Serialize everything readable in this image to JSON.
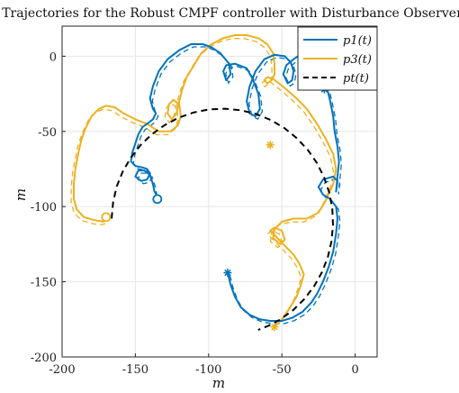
{
  "chart_data": {
    "type": "line",
    "title": "Trajectories for the Robust CMPF controller with Disturbance Observer",
    "xlabel": "m",
    "ylabel": "m",
    "xlim": [
      -200,
      15
    ],
    "ylim": [
      -200,
      20
    ],
    "xticks": [
      "-200",
      "-150",
      "-100",
      "-50",
      "0"
    ],
    "yticks": [
      "0",
      "-50",
      "-100",
      "-150",
      "-200"
    ],
    "grid": true,
    "legend_position": "top-right",
    "colors": {
      "p1": "#0072BD",
      "p3": "#EDB120",
      "pt": "#000000"
    },
    "series": [
      {
        "name": "p_1(t)",
        "color": "#0072BD",
        "style": "solid",
        "points": [
          [
            -87,
            -144
          ],
          [
            -85,
            -152
          ],
          [
            -82,
            -160
          ],
          [
            -78,
            -167
          ],
          [
            -72,
            -172
          ],
          [
            -65,
            -175
          ],
          [
            -58,
            -176
          ],
          [
            -50,
            -176
          ],
          [
            -43,
            -174
          ],
          [
            -36,
            -170
          ],
          [
            -30,
            -164
          ],
          [
            -26,
            -158
          ],
          [
            -22,
            -150
          ],
          [
            -18,
            -140
          ],
          [
            -15,
            -130
          ],
          [
            -13,
            -118
          ],
          [
            -12,
            -108
          ],
          [
            -13,
            -100
          ],
          [
            -17,
            -95
          ],
          [
            -22,
            -92
          ],
          [
            -25,
            -87
          ],
          [
            -22,
            -82
          ],
          [
            -15,
            -80
          ],
          [
            -12,
            -83
          ],
          [
            -13,
            -90
          ],
          [
            -12,
            -80
          ],
          [
            -11,
            -70
          ],
          [
            -12,
            -60
          ],
          [
            -14,
            -50
          ],
          [
            -15,
            -40
          ],
          [
            -17,
            -30
          ],
          [
            -19,
            -22
          ],
          [
            -21,
            -12
          ],
          [
            -22,
            -8
          ],
          [
            -26,
            -5
          ],
          [
            -31,
            -5
          ],
          [
            -36,
            -8
          ],
          [
            -38,
            -12
          ],
          [
            -36,
            -15
          ],
          [
            -32,
            -15
          ],
          [
            -30,
            -11
          ],
          [
            -28,
            -5
          ],
          [
            -30,
            2
          ],
          [
            -36,
            2
          ],
          [
            -42,
            -2
          ],
          [
            -47,
            -6
          ],
          [
            -49,
            -12
          ],
          [
            -46,
            -18
          ],
          [
            -43,
            -16
          ],
          [
            -42,
            -10
          ],
          [
            -44,
            -4
          ],
          [
            -48,
            0
          ],
          [
            -55,
            1
          ],
          [
            -62,
            -2
          ],
          [
            -68,
            -10
          ],
          [
            -72,
            -20
          ],
          [
            -74,
            -30
          ],
          [
            -72,
            -38
          ],
          [
            -68,
            -40
          ],
          [
            -65,
            -35
          ],
          [
            -66,
            -25
          ],
          [
            -70,
            -15
          ],
          [
            -74,
            -8
          ],
          [
            -82,
            -5
          ],
          [
            -88,
            -6
          ],
          [
            -90,
            -10
          ],
          [
            -88,
            -16
          ],
          [
            -85,
            -12
          ],
          [
            -86,
            -5
          ],
          [
            -92,
            2
          ],
          [
            -98,
            6
          ],
          [
            -104,
            8
          ],
          [
            -112,
            8
          ],
          [
            -120,
            4
          ],
          [
            -128,
            -2
          ],
          [
            -134,
            -10
          ],
          [
            -138,
            -20
          ],
          [
            -140,
            -28
          ],
          [
            -138,
            -35
          ],
          [
            -136,
            -38
          ],
          [
            -138,
            -42
          ],
          [
            -142,
            -45
          ],
          [
            -145,
            -47
          ],
          [
            -148,
            -52
          ],
          [
            -150,
            -58
          ],
          [
            -152,
            -64
          ],
          [
            -153,
            -70
          ],
          [
            -150,
            -73
          ],
          [
            -145,
            -74
          ],
          [
            -142,
            -75
          ],
          [
            -140,
            -78
          ],
          [
            -142,
            -82
          ],
          [
            -146,
            -83
          ],
          [
            -150,
            -80
          ],
          [
            -148,
            -76
          ],
          [
            -144,
            -76
          ],
          [
            -140,
            -79
          ],
          [
            -138,
            -85
          ],
          [
            -137,
            -90
          ],
          [
            -135,
            -93
          ],
          [
            -135,
            -95
          ]
        ]
      },
      {
        "name": "p_3(t)",
        "color": "#EDB120",
        "style": "solid",
        "points": [
          [
            -55,
            -180
          ],
          [
            -50,
            -175
          ],
          [
            -45,
            -168
          ],
          [
            -40,
            -160
          ],
          [
            -37,
            -152
          ],
          [
            -35,
            -145
          ],
          [
            -38,
            -138
          ],
          [
            -42,
            -132
          ],
          [
            -48,
            -126
          ],
          [
            -54,
            -120
          ],
          [
            -58,
            -116
          ],
          [
            -55,
            -114
          ],
          [
            -50,
            -116
          ],
          [
            -48,
            -122
          ],
          [
            -51,
            -125
          ],
          [
            -56,
            -121
          ],
          [
            -55,
            -115
          ],
          [
            -50,
            -110
          ],
          [
            -42,
            -108
          ],
          [
            -33,
            -108
          ],
          [
            -25,
            -104
          ],
          [
            -20,
            -96
          ],
          [
            -15,
            -85
          ],
          [
            -13,
            -75
          ],
          [
            -15,
            -65
          ],
          [
            -20,
            -55
          ],
          [
            -26,
            -45
          ],
          [
            -33,
            -35
          ],
          [
            -40,
            -28
          ],
          [
            -47,
            -22
          ],
          [
            -52,
            -18
          ],
          [
            -56,
            -15
          ],
          [
            -60,
            -14
          ],
          [
            -62,
            -16
          ],
          [
            -60,
            -18
          ],
          [
            -57,
            -16
          ],
          [
            -55,
            -12
          ],
          [
            -55,
            -5
          ],
          [
            -56,
            2
          ],
          [
            -60,
            8
          ],
          [
            -66,
            12
          ],
          [
            -74,
            14
          ],
          [
            -82,
            14
          ],
          [
            -90,
            12
          ],
          [
            -98,
            8
          ],
          [
            -105,
            2
          ],
          [
            -110,
            -6
          ],
          [
            -115,
            -14
          ],
          [
            -118,
            -22
          ],
          [
            -120,
            -30
          ],
          [
            -122,
            -38
          ],
          [
            -125,
            -42
          ],
          [
            -128,
            -38
          ],
          [
            -127,
            -32
          ],
          [
            -124,
            -29
          ],
          [
            -120,
            -32
          ],
          [
            -119,
            -40
          ],
          [
            -121,
            -46
          ],
          [
            -126,
            -50
          ],
          [
            -134,
            -50
          ],
          [
            -142,
            -45
          ],
          [
            -150,
            -42
          ],
          [
            -158,
            -38
          ],
          [
            -164,
            -34
          ],
          [
            -170,
            -33
          ],
          [
            -175,
            -35
          ],
          [
            -180,
            -40
          ],
          [
            -184,
            -48
          ],
          [
            -187,
            -56
          ],
          [
            -189,
            -65
          ],
          [
            -191,
            -75
          ],
          [
            -192,
            -85
          ],
          [
            -192,
            -95
          ],
          [
            -190,
            -102
          ],
          [
            -185,
            -107
          ],
          [
            -178,
            -109
          ],
          [
            -172,
            -110
          ],
          [
            -168,
            -109
          ],
          [
            -168,
            -107
          ],
          [
            -170,
            -107
          ]
        ]
      },
      {
        "name": "p_t(t)",
        "color": "#000000",
        "style": "dashed",
        "points": [
          [
            -166.2,
            -108
          ],
          [
            -165.2,
            -97.1
          ],
          [
            -162.7,
            -86.6
          ],
          [
            -158.6,
            -76.7
          ],
          [
            -153.1,
            -67.5
          ],
          [
            -146.5,
            -59.2
          ],
          [
            -138.7,
            -51.9
          ],
          [
            -130.0,
            -45.8
          ],
          [
            -120.5,
            -40.9
          ],
          [
            -110.3,
            -37.4
          ],
          [
            -99.8,
            -35.4
          ],
          [
            -89.0,
            -34.9
          ],
          [
            -78.2,
            -35.9
          ],
          [
            -67.7,
            -38.4
          ],
          [
            -57.6,
            -42.4
          ],
          [
            -48.3,
            -47.8
          ],
          [
            -39.8,
            -54.5
          ],
          [
            -32.3,
            -62.3
          ],
          [
            -26.1,
            -71.0
          ],
          [
            -21.2,
            -80.6
          ],
          [
            -17.6,
            -90.8
          ],
          [
            -15.6,
            -101.3
          ],
          [
            -15.1,
            -112.1
          ],
          [
            -16.1,
            -122.9
          ],
          [
            -18.6,
            -133.5
          ],
          [
            -22.6,
            -143.6
          ],
          [
            -28.0,
            -153.0
          ],
          [
            -34.7,
            -161.5
          ],
          [
            -42.5,
            -169.0
          ],
          [
            -51.3,
            -175.2
          ],
          [
            -58.6,
            -179.0
          ],
          [
            -66.2,
            -182.0
          ]
        ]
      }
    ]
  },
  "legend": [
    {
      "label": "p1(t)",
      "color": "#0072BD",
      "style": "solid"
    },
    {
      "label": "p3(t)",
      "color": "#EDB120",
      "style": "solid"
    },
    {
      "label": "pt(t)",
      "color": "#000000",
      "style": "dashed"
    }
  ]
}
